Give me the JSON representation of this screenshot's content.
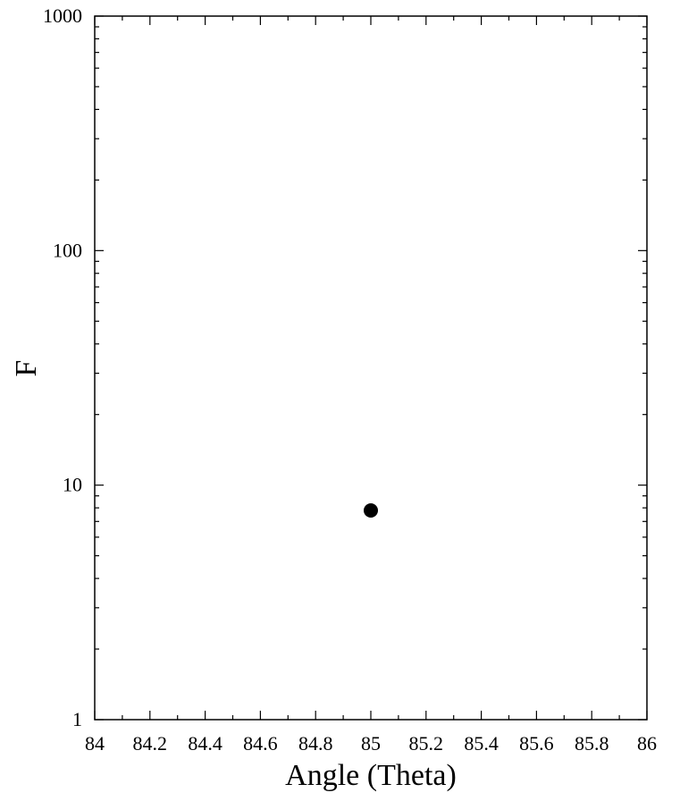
{
  "chart_data": {
    "type": "scatter",
    "xlabel": "Angle (Theta)",
    "ylabel": "F",
    "xlim": [
      84,
      86
    ],
    "ylim": [
      1,
      1000
    ],
    "yscale": "log",
    "x_ticks": [
      84,
      84.2,
      84.4,
      84.6,
      84.8,
      85,
      85.2,
      85.4,
      85.6,
      85.8,
      86
    ],
    "x_tick_labels": [
      "84",
      "84.2",
      "84.4",
      "84.6",
      "84.8",
      "85",
      "85.2",
      "85.4",
      "85.6",
      "85.8",
      "86"
    ],
    "y_ticks": [
      1,
      10,
      100,
      1000
    ],
    "y_tick_labels": [
      "1",
      "10",
      "100",
      "1000"
    ],
    "grid": false,
    "series": [
      {
        "points": [
          {
            "x": 85.0,
            "y": 7.8
          }
        ],
        "marker": "filled-circle",
        "color": "#000000"
      }
    ]
  }
}
